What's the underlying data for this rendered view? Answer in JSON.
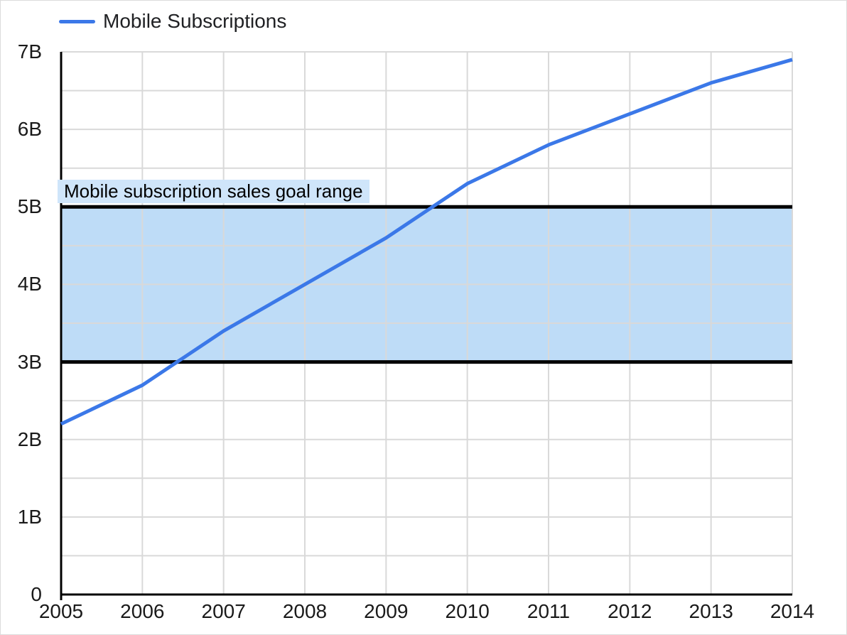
{
  "chart_data": {
    "type": "line",
    "title": "",
    "x": [
      2005,
      2006,
      2007,
      2008,
      2009,
      2010,
      2011,
      2012,
      2013,
      2014
    ],
    "x_ticks": [
      "2005",
      "2006",
      "2007",
      "2008",
      "2009",
      "2010",
      "2011",
      "2012",
      "2013",
      "2014"
    ],
    "series": [
      {
        "name": "Mobile Subscriptions",
        "values": [
          2.2,
          2.7,
          3.4,
          4.0,
          4.6,
          5.3,
          5.8,
          6.2,
          6.6,
          6.9
        ],
        "color": "#3b78e8"
      }
    ],
    "xlim": [
      2005,
      2014
    ],
    "ylim": [
      0,
      7
    ],
    "y_ticks": [
      "0",
      "1B",
      "2B",
      "3B",
      "4B",
      "5B",
      "6B",
      "7B"
    ],
    "y_tick_values": [
      0,
      1,
      2,
      3,
      4,
      5,
      6,
      7
    ],
    "minor_grid_step": 0.5,
    "grid": true,
    "grid_color": "#d9d9d9",
    "axis_color": "#000000",
    "legend_position": "top-left",
    "band": {
      "from": 3,
      "to": 5,
      "label": "Mobile subscription sales goal range",
      "fill": "#bedcf7",
      "border_color": "#000000",
      "label_bg": "#cfe5fa"
    }
  }
}
